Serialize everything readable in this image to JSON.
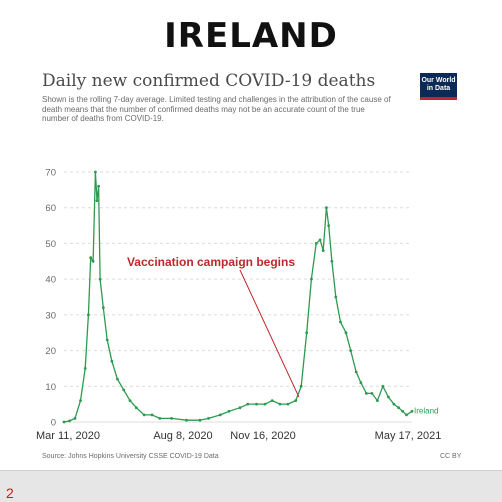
{
  "header": {
    "title": "IRELAND"
  },
  "logo": {
    "text_line1": "Our World",
    "text_line2": "in Data"
  },
  "footer": {
    "source": "Source: Johns Hopkins University CSSE COVID-19 Data",
    "license": "CC BY",
    "page_number": "2"
  },
  "colors": {
    "line": "#2e9a50",
    "annotation": "#c0272d",
    "grid": "#dcdcdc"
  },
  "chart_data": {
    "type": "line",
    "title": "Daily new confirmed COVID-19 deaths",
    "subtitle": "Shown is the rolling 7-day average. Limited testing and challenges in the attribution of the cause of death means that the number of confirmed deaths may not be an accurate count of the true number of deaths from COVID-19.",
    "xlabel": "",
    "ylabel": "",
    "ylim": [
      0,
      70
    ],
    "yticks": [
      0,
      10,
      20,
      30,
      40,
      50,
      60,
      70
    ],
    "xticks": [
      "Mar 11, 2020",
      "Aug 8, 2020",
      "Nov 16, 2020",
      "May 17, 2021"
    ],
    "xlim": [
      "2020-03-05",
      "2021-05-22"
    ],
    "grid": true,
    "annotation": {
      "text": "Vaccination campaign begins",
      "date": "2020-12-29",
      "value": 7
    },
    "series": [
      {
        "name": "Ireland",
        "points": [
          [
            "2020-03-05",
            0
          ],
          [
            "2020-03-12",
            0.3
          ],
          [
            "2020-03-19",
            1
          ],
          [
            "2020-03-26",
            6
          ],
          [
            "2020-04-01",
            15
          ],
          [
            "2020-04-05",
            30
          ],
          [
            "2020-04-08",
            46
          ],
          [
            "2020-04-11",
            45
          ],
          [
            "2020-04-14",
            70
          ],
          [
            "2020-04-16",
            62
          ],
          [
            "2020-04-18",
            66
          ],
          [
            "2020-04-20",
            40
          ],
          [
            "2020-04-24",
            32
          ],
          [
            "2020-04-29",
            23
          ],
          [
            "2020-05-05",
            17
          ],
          [
            "2020-05-12",
            12
          ],
          [
            "2020-05-20",
            9
          ],
          [
            "2020-05-28",
            6
          ],
          [
            "2020-06-05",
            4
          ],
          [
            "2020-06-15",
            2
          ],
          [
            "2020-06-25",
            2
          ],
          [
            "2020-07-05",
            1
          ],
          [
            "2020-07-20",
            1
          ],
          [
            "2020-08-08",
            0.5
          ],
          [
            "2020-08-25",
            0.5
          ],
          [
            "2020-09-05",
            1
          ],
          [
            "2020-09-20",
            2
          ],
          [
            "2020-10-01",
            3
          ],
          [
            "2020-10-15",
            4
          ],
          [
            "2020-10-25",
            5
          ],
          [
            "2020-11-05",
            5
          ],
          [
            "2020-11-16",
            5
          ],
          [
            "2020-11-25",
            6
          ],
          [
            "2020-12-05",
            5
          ],
          [
            "2020-12-15",
            5
          ],
          [
            "2020-12-25",
            6
          ],
          [
            "2021-01-01",
            10
          ],
          [
            "2021-01-08",
            25
          ],
          [
            "2021-01-14",
            40
          ],
          [
            "2021-01-20",
            50
          ],
          [
            "2021-01-25",
            51
          ],
          [
            "2021-01-29",
            48
          ],
          [
            "2021-02-02",
            60
          ],
          [
            "2021-02-05",
            55
          ],
          [
            "2021-02-09",
            45
          ],
          [
            "2021-02-14",
            35
          ],
          [
            "2021-02-20",
            28
          ],
          [
            "2021-02-27",
            25
          ],
          [
            "2021-03-05",
            20
          ],
          [
            "2021-03-12",
            14
          ],
          [
            "2021-03-18",
            11
          ],
          [
            "2021-03-25",
            8
          ],
          [
            "2021-04-01",
            8
          ],
          [
            "2021-04-08",
            6
          ],
          [
            "2021-04-15",
            10
          ],
          [
            "2021-04-22",
            7
          ],
          [
            "2021-04-29",
            5
          ],
          [
            "2021-05-05",
            4
          ],
          [
            "2021-05-10",
            3
          ],
          [
            "2021-05-15",
            2
          ],
          [
            "2021-05-22",
            3
          ]
        ]
      }
    ]
  }
}
